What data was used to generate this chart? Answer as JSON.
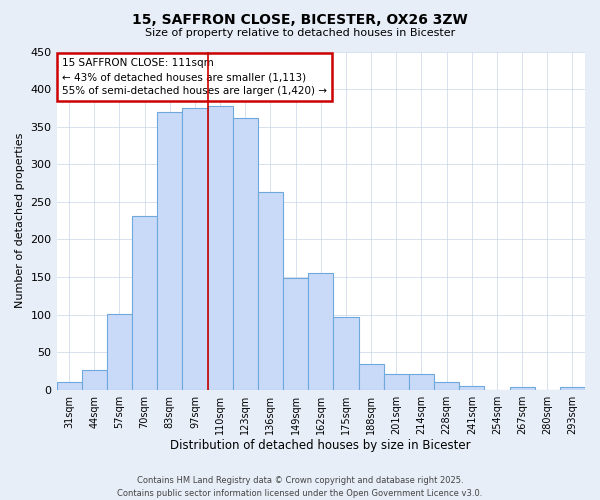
{
  "title": "15, SAFFRON CLOSE, BICESTER, OX26 3ZW",
  "subtitle": "Size of property relative to detached houses in Bicester",
  "xlabel": "Distribution of detached houses by size in Bicester",
  "ylabel": "Number of detached properties",
  "bar_labels": [
    "31sqm",
    "44sqm",
    "57sqm",
    "70sqm",
    "83sqm",
    "97sqm",
    "110sqm",
    "123sqm",
    "136sqm",
    "149sqm",
    "162sqm",
    "175sqm",
    "188sqm",
    "201sqm",
    "214sqm",
    "228sqm",
    "241sqm",
    "254sqm",
    "267sqm",
    "280sqm",
    "293sqm"
  ],
  "bar_values": [
    10,
    26,
    101,
    231,
    370,
    375,
    378,
    362,
    263,
    149,
    155,
    97,
    34,
    21,
    21,
    10,
    5,
    0,
    3,
    0,
    3
  ],
  "bar_color": "#c9daf8",
  "bar_edge_color": "#6fa8dc",
  "ylim": [
    0,
    450
  ],
  "yticks": [
    0,
    50,
    100,
    150,
    200,
    250,
    300,
    350,
    400,
    450
  ],
  "vline_x": 6.0,
  "vline_color": "#cc0000",
  "annotation_line1": "15 SAFFRON CLOSE: 111sqm",
  "annotation_line2": "← 43% of detached houses are smaller (1,113)",
  "annotation_line3": "55% of semi-detached houses are larger (1,420) →",
  "annotation_box_facecolor": "white",
  "annotation_box_edgecolor": "#cc0000",
  "footer_line1": "Contains HM Land Registry data © Crown copyright and database right 2025.",
  "footer_line2": "Contains public sector information licensed under the Open Government Licence v3.0.",
  "fig_facecolor": "#e8eef8",
  "ax_facecolor": "#ffffff",
  "grid_color": "#c8d4e8"
}
